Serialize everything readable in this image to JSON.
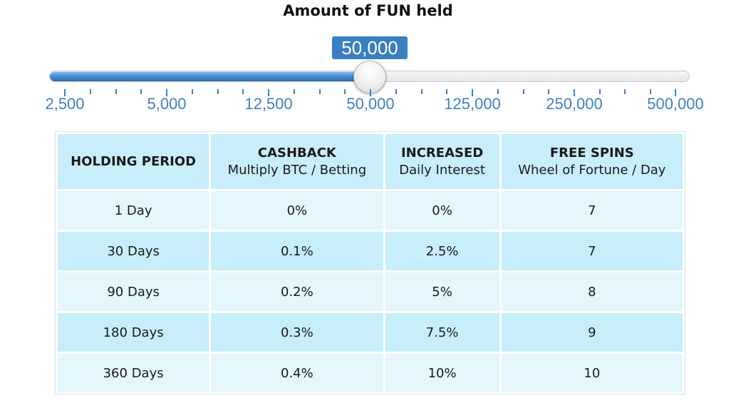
{
  "heading": "Amount of FUN held",
  "slider": {
    "value_label": "50,000",
    "position_fraction": 0.5,
    "tick_labels": [
      "2,500",
      "5,000",
      "12,500",
      "50,000",
      "125,000",
      "250,000",
      "500,000"
    ]
  },
  "table": {
    "headers": [
      {
        "main": "HOLDING PERIOD",
        "sub": ""
      },
      {
        "main": "CASHBACK",
        "sub": "Multiply BTC / Betting"
      },
      {
        "main": "INCREASED",
        "sub": "Daily Interest"
      },
      {
        "main": "FREE SPINS",
        "sub": "Wheel of Fortune / Day"
      }
    ],
    "rows": [
      [
        "1 Day",
        "0%",
        "0%",
        "7"
      ],
      [
        "30 Days",
        "0.1%",
        "2.5%",
        "7"
      ],
      [
        "90 Days",
        "0.2%",
        "5%",
        "8"
      ],
      [
        "180 Days",
        "0.3%",
        "7.5%",
        "9"
      ],
      [
        "360 Days",
        "0.4%",
        "10%",
        "10"
      ]
    ]
  },
  "colors": {
    "accent": "#3a7fc0",
    "tick": "#3f7fbf",
    "row_light": "#e3f7fd",
    "row_dark": "#c8eefb"
  }
}
